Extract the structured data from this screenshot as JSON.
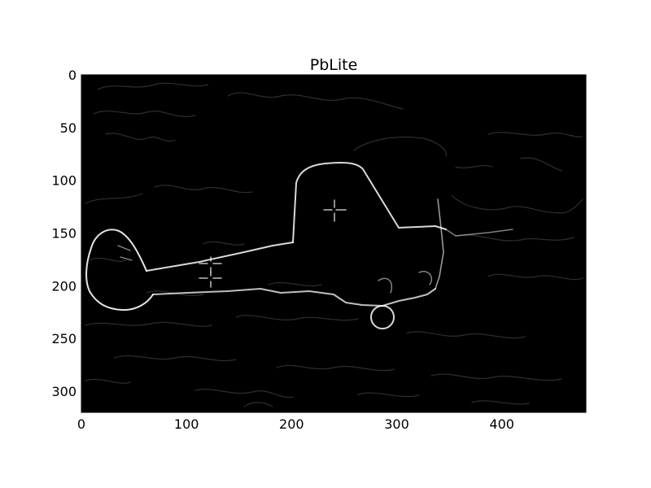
{
  "figure": {
    "title": "PbLite",
    "image_description_semantic": "edge-map",
    "image_width": 480,
    "image_height": 320,
    "background_color": "#000000",
    "edge_color": "#ffffff",
    "x_axis": {
      "ticks": [
        0,
        100,
        200,
        300,
        400
      ],
      "range": [
        0,
        480
      ]
    },
    "y_axis": {
      "ticks": [
        0,
        50,
        100,
        150,
        200,
        250,
        300
      ],
      "range": [
        0,
        320
      ],
      "inverted": true
    }
  }
}
